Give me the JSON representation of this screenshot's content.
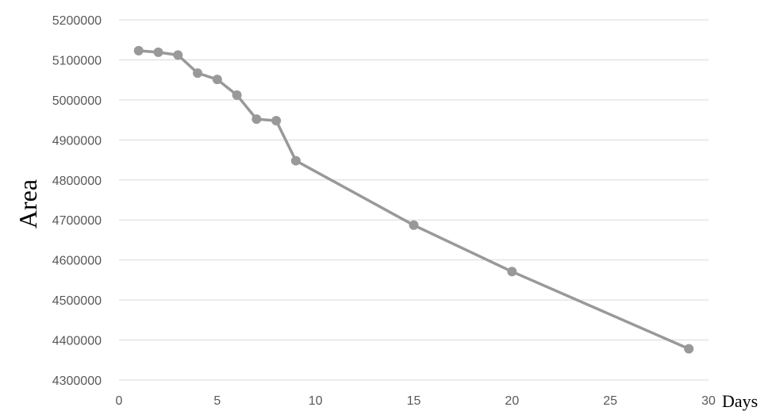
{
  "chart_data": {
    "type": "scatter",
    "title": "",
    "xlabel": "Days",
    "ylabel": "Area",
    "xlim": [
      0,
      30
    ],
    "ylim": [
      4300000,
      5200000
    ],
    "xticks": [
      0,
      5,
      10,
      15,
      20,
      25,
      30
    ],
    "yticks": [
      4300000,
      4400000,
      4500000,
      4600000,
      4700000,
      4800000,
      4900000,
      5000000,
      5100000,
      5200000
    ],
    "grid": "horizontal",
    "legend": "none",
    "series": [
      {
        "color": "#999999",
        "x": [
          1,
          2,
          3,
          4,
          5,
          6,
          7,
          8,
          9,
          15,
          20,
          29
        ],
        "y": [
          5123000,
          5119000,
          5112000,
          5067000,
          5051000,
          5012000,
          4952000,
          4948000,
          4848000,
          4687000,
          4571000,
          4378000
        ]
      }
    ]
  }
}
